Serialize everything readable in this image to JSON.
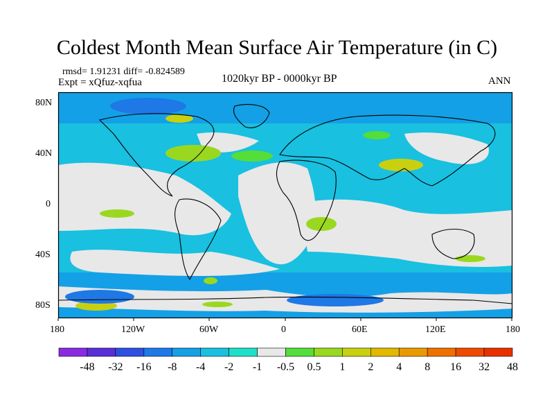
{
  "title": "Coldest Month Mean Surface Air Temperature (in C)",
  "stats_line": "rmsd= 1.91231 diff= -0.824589",
  "expt_line": "Expt = xQfuz-xqfua",
  "period": "1020kyr BP - 0000kyr BP",
  "season": "ANN",
  "lat_labels": [
    "80N",
    "40N",
    "0",
    "40S",
    "80S"
  ],
  "lon_labels": [
    "180",
    "120W",
    "60W",
    "0",
    "60E",
    "120E",
    "180"
  ],
  "colorbar": {
    "labels": [
      "-48",
      "-32",
      "-16",
      "-8",
      "-4",
      "-2",
      "-1",
      "-0.5",
      "0.5",
      "1",
      "2",
      "4",
      "8",
      "16",
      "32",
      "48"
    ],
    "colors": [
      "#8a2be2",
      "#5a2fd6",
      "#2c50e0",
      "#1e78e6",
      "#14a0e6",
      "#19c0e0",
      "#1ee0c8",
      "#e8e8e8",
      "#55dd3a",
      "#9ad820",
      "#c9d010",
      "#e2b800",
      "#ea9a00",
      "#ee7000",
      "#ee4a00",
      "#e83000"
    ]
  }
}
